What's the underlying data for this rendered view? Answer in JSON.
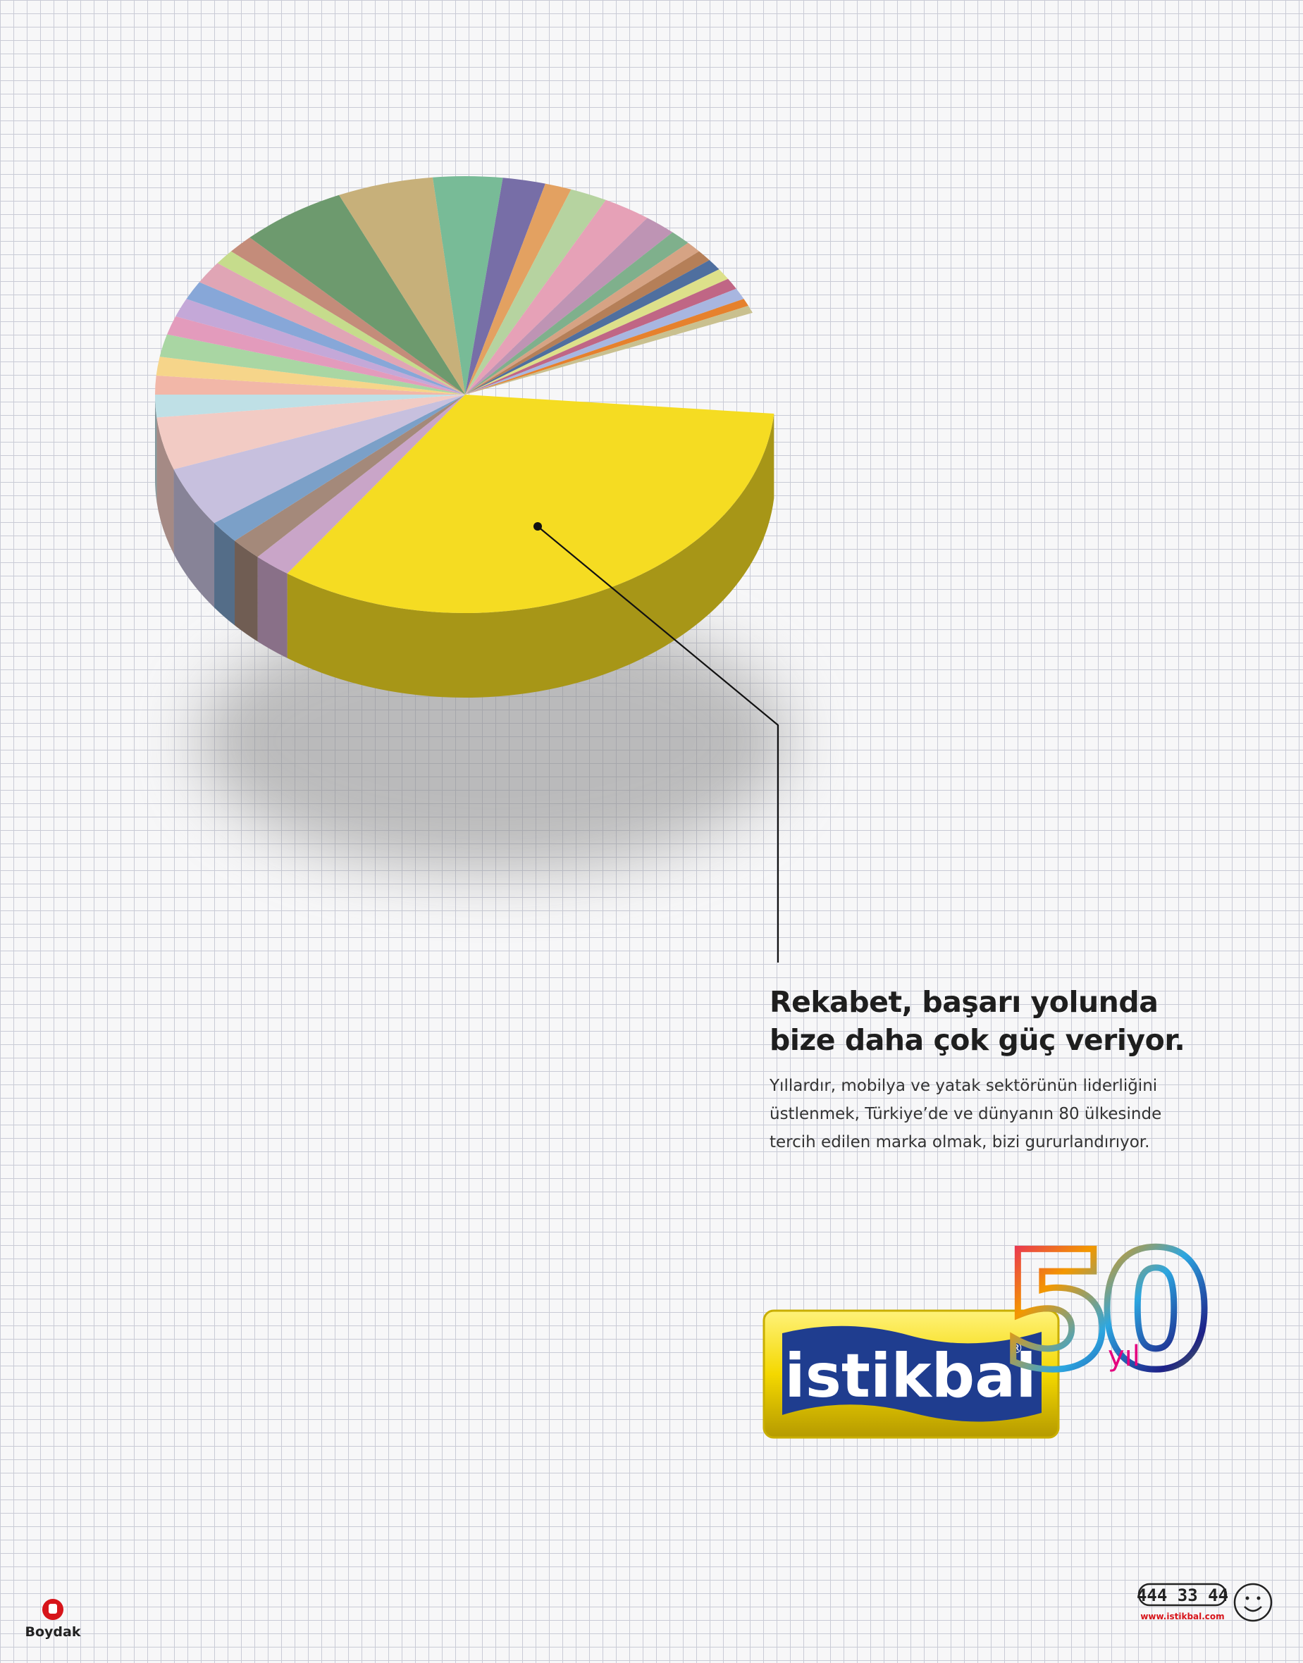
{
  "headline": [
    "Rekabet, başarı yolunda",
    "bize daha çok güç veriyor."
  ],
  "body": [
    "Yıllardır, mobilya ve yatak sektörünün liderliğini",
    "üstlenmek, Türkiye’de ve dünyanın 80 ülkesinde",
    "tercih edilen marka olmak, bizi gururlandırıyor."
  ],
  "logo": {
    "brand": "istikbal",
    "registered": "®",
    "anniversary": "50",
    "anniversary_unit": "yıl"
  },
  "footer": {
    "company": "Boydak",
    "phone": "444 33 44",
    "website": "www.istikbal.com"
  }
}
